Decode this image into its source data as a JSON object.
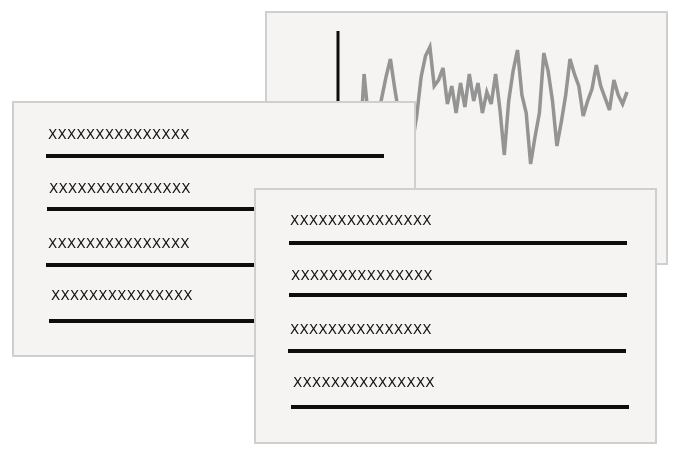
{
  "colors": {
    "panel_bg": "#f5f4f2",
    "panel_border": "#cfcfcf",
    "line": "#0d0d0d",
    "waveform": "#949494"
  },
  "chart_panel": {
    "icon": "waveform-icon",
    "chart_data": {
      "type": "line",
      "values": [
        40,
        52,
        30,
        78,
        48,
        22,
        48,
        62,
        76,
        88,
        68,
        50,
        36,
        24,
        32,
        50,
        76,
        90,
        96,
        70,
        74,
        82,
        58,
        70,
        52,
        72,
        56,
        78,
        60,
        72,
        52,
        66,
        58,
        78,
        54,
        24,
        60,
        80,
        94,
        64,
        52,
        18,
        36,
        52,
        92,
        80,
        60,
        30,
        46,
        64,
        88,
        78,
        70,
        50,
        60,
        68,
        84,
        70,
        62,
        54,
        74,
        64,
        58,
        66
      ]
    }
  },
  "left_panel": {
    "rows": [
      {
        "text": "XXXXXXXXXXXXXXX"
      },
      {
        "text": "XXXXXXXXXXXXXXX"
      },
      {
        "text": "XXXXXXXXXXXXXXX"
      },
      {
        "text": "XXXXXXXXXXXXXXX"
      }
    ]
  },
  "front_panel": {
    "rows": [
      {
        "text": "XXXXXXXXXXXXXXX"
      },
      {
        "text": "XXXXXXXXXXXXXXX"
      },
      {
        "text": "XXXXXXXXXXXXXXX"
      },
      {
        "text": "XXXXXXXXXXXXXXX"
      }
    ]
  }
}
